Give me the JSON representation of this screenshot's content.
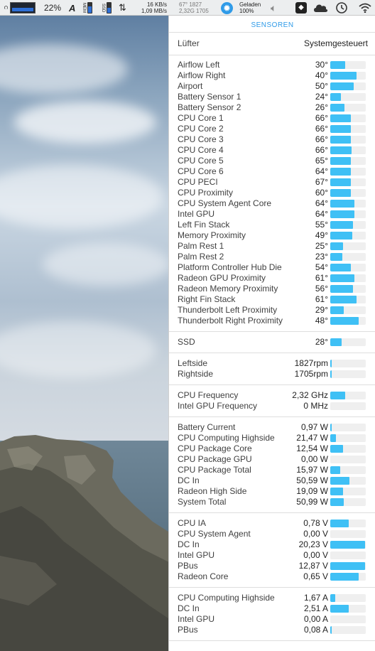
{
  "menubar": {
    "cpu_label": "C",
    "cpu_percent": "22%",
    "a_icon": "A",
    "mem_label": "MEM",
    "ssd_label": "SSD",
    "net_up": "16 KB/s",
    "net_down": "1,09 MB/s",
    "sens_top": "67°  1827",
    "sens_bottom": "2,32G  1705",
    "battery_status": "Geladen",
    "battery_percent": "100%"
  },
  "panel": {
    "title": "SENSOREN",
    "fan_control": {
      "label": "Lüfter",
      "value": "Systemgesteuert"
    },
    "temperatures": [
      {
        "label": "Airflow Left",
        "value": "30°",
        "level": 0.42
      },
      {
        "label": "Airflow Right",
        "value": "40°",
        "level": 0.74
      },
      {
        "label": "Airport",
        "value": "50°",
        "level": 0.66
      },
      {
        "label": "Battery Sensor 1",
        "value": "24°",
        "level": 0.3
      },
      {
        "label": "Battery Sensor 2",
        "value": "26°",
        "level": 0.4
      },
      {
        "label": "CPU Core 1",
        "value": "66°",
        "level": 0.58
      },
      {
        "label": "CPU Core 2",
        "value": "66°",
        "level": 0.58
      },
      {
        "label": "CPU Core 3",
        "value": "66°",
        "level": 0.58
      },
      {
        "label": "CPU Core 4",
        "value": "66°",
        "level": 0.6
      },
      {
        "label": "CPU Core 5",
        "value": "65°",
        "level": 0.58
      },
      {
        "label": "CPU Core 6",
        "value": "64°",
        "level": 0.58
      },
      {
        "label": "CPU PECI",
        "value": "67°",
        "level": 0.58
      },
      {
        "label": "CPU Proximity",
        "value": "60°",
        "level": 0.58
      },
      {
        "label": "CPU System Agent Core",
        "value": "64°",
        "level": 0.68
      },
      {
        "label": "Intel GPU",
        "value": "64°",
        "level": 0.68
      },
      {
        "label": "Left Fin Stack",
        "value": "55°",
        "level": 0.64
      },
      {
        "label": "Memory Proximity",
        "value": "49°",
        "level": 0.62
      },
      {
        "label": "Palm Rest 1",
        "value": "25°",
        "level": 0.36
      },
      {
        "label": "Palm Rest 2",
        "value": "23°",
        "level": 0.34
      },
      {
        "label": "Platform Controller Hub Die",
        "value": "54°",
        "level": 0.58
      },
      {
        "label": "Radeon GPU Proximity",
        "value": "61°",
        "level": 0.68
      },
      {
        "label": "Radeon Memory Proximity",
        "value": "56°",
        "level": 0.64
      },
      {
        "label": "Right Fin Stack",
        "value": "61°",
        "level": 0.74
      },
      {
        "label": "Thunderbolt Left Proximity",
        "value": "29°",
        "level": 0.38
      },
      {
        "label": "Thunderbolt Right Proximity",
        "value": "48°",
        "level": 0.8
      }
    ],
    "ssd": [
      {
        "label": "SSD",
        "value": "28°",
        "level": 0.32
      }
    ],
    "fans": [
      {
        "label": "Leftside",
        "value": "1827rpm",
        "level": 0.03
      },
      {
        "label": "Rightside",
        "value": "1705rpm",
        "level": 0.03
      }
    ],
    "frequencies": [
      {
        "label": "CPU Frequency",
        "value": "2,32 GHz",
        "level": 0.42
      },
      {
        "label": "Intel GPU Frequency",
        "value": "0 MHz",
        "level": 0.0
      }
    ],
    "power": [
      {
        "label": "Battery Current",
        "value": "0,97 W",
        "level": 0.02
      },
      {
        "label": "CPU Computing Highside",
        "value": "21,47 W",
        "level": 0.16
      },
      {
        "label": "CPU Package Core",
        "value": "12,54 W",
        "level": 0.36
      },
      {
        "label": "CPU Package GPU",
        "value": "0,00 W",
        "level": 0.0
      },
      {
        "label": "CPU Package Total",
        "value": "15,97 W",
        "level": 0.28
      },
      {
        "label": "DC In",
        "value": "50,59 W",
        "level": 0.54
      },
      {
        "label": "Radeon High Side",
        "value": "19,09 W",
        "level": 0.36
      },
      {
        "label": "System Total",
        "value": "50,99 W",
        "level": 0.38
      }
    ],
    "voltage": [
      {
        "label": "CPU IA",
        "value": "0,78 V",
        "level": 0.52
      },
      {
        "label": "CPU System Agent",
        "value": "0,00 V",
        "level": 0.0
      },
      {
        "label": "DC In",
        "value": "20,23 V",
        "level": 0.98
      },
      {
        "label": "Intel GPU",
        "value": "0,00 V",
        "level": 0.0
      },
      {
        "label": "PBus",
        "value": "12,87 V",
        "level": 0.98
      },
      {
        "label": "Radeon Core",
        "value": "0,65 V",
        "level": 0.8
      }
    ],
    "current": [
      {
        "label": "CPU Computing Highside",
        "value": "1,67 A",
        "level": 0.14
      },
      {
        "label": "DC In",
        "value": "2,51 A",
        "level": 0.52
      },
      {
        "label": "Intel GPU",
        "value": "0,00 A",
        "level": 0.0
      },
      {
        "label": "PBus",
        "value": "0,08 A",
        "level": 0.02
      }
    ]
  },
  "colors": {
    "accent": "#2f9be8",
    "bar_fill": "#3fc0f5",
    "bar_track": "#efefef"
  }
}
